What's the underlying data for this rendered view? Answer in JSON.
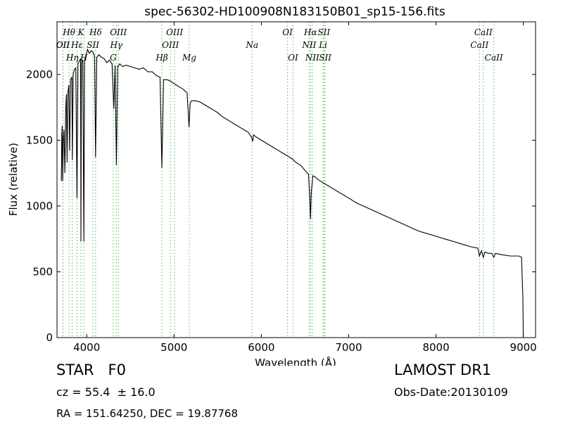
{
  "chart_data": {
    "type": "line",
    "title": "spec-56302-HD100908N183150B01_sp15-156.fits",
    "xlabel": "Wavelength (Å)",
    "ylabel": "Flux (relative)",
    "xlim": [
      3660,
      9140
    ],
    "ylim": [
      0,
      2400
    ],
    "xticks": [
      4000,
      5000,
      6000,
      7000,
      8000,
      9000
    ],
    "yticks": [
      0,
      500,
      1000,
      1500,
      2000
    ],
    "grid": false,
    "line_color": "#000000",
    "marker_color": "#55b855",
    "series": [
      {
        "values": [
          [
            3710,
            1190
          ],
          [
            3715,
            1540
          ],
          [
            3720,
            1610
          ],
          [
            3725,
            1190
          ],
          [
            3732,
            1500
          ],
          [
            3740,
            1580
          ],
          [
            3750,
            1250
          ],
          [
            3760,
            1740
          ],
          [
            3768,
            1850
          ],
          [
            3775,
            1330
          ],
          [
            3785,
            1860
          ],
          [
            3795,
            1920
          ],
          [
            3805,
            1420
          ],
          [
            3815,
            1960
          ],
          [
            3830,
            1980
          ],
          [
            3836,
            1350
          ],
          [
            3845,
            2000
          ],
          [
            3860,
            2040
          ],
          [
            3875,
            2050
          ],
          [
            3889,
            1060
          ],
          [
            3900,
            2080
          ],
          [
            3915,
            2100
          ],
          [
            3930,
            2120
          ],
          [
            3934,
            730
          ],
          [
            3940,
            2090
          ],
          [
            3955,
            2110
          ],
          [
            3968,
            730
          ],
          [
            3975,
            2100
          ],
          [
            3990,
            2140
          ],
          [
            4010,
            2190
          ],
          [
            4030,
            2160
          ],
          [
            4050,
            2180
          ],
          [
            4070,
            2170
          ],
          [
            4090,
            2140
          ],
          [
            4102,
            1370
          ],
          [
            4115,
            2130
          ],
          [
            4140,
            2150
          ],
          [
            4170,
            2130
          ],
          [
            4200,
            2120
          ],
          [
            4230,
            2090
          ],
          [
            4260,
            2110
          ],
          [
            4290,
            2080
          ],
          [
            4310,
            1740
          ],
          [
            4325,
            2070
          ],
          [
            4340,
            1310
          ],
          [
            4355,
            2060
          ],
          [
            4380,
            2080
          ],
          [
            4410,
            2060
          ],
          [
            4450,
            2070
          ],
          [
            4500,
            2060
          ],
          [
            4550,
            2050
          ],
          [
            4600,
            2040
          ],
          [
            4650,
            2050
          ],
          [
            4700,
            2020
          ],
          [
            4750,
            2020
          ],
          [
            4800,
            1990
          ],
          [
            4840,
            1980
          ],
          [
            4861,
            1290
          ],
          [
            4880,
            1960
          ],
          [
            4920,
            1960
          ],
          [
            4960,
            1950
          ],
          [
            5000,
            1930
          ],
          [
            5050,
            1910
          ],
          [
            5100,
            1890
          ],
          [
            5150,
            1860
          ],
          [
            5172,
            1600
          ],
          [
            5185,
            1780
          ],
          [
            5200,
            1800
          ],
          [
            5250,
            1800
          ],
          [
            5300,
            1790
          ],
          [
            5350,
            1770
          ],
          [
            5400,
            1750
          ],
          [
            5450,
            1730
          ],
          [
            5500,
            1710
          ],
          [
            5550,
            1680
          ],
          [
            5600,
            1660
          ],
          [
            5650,
            1640
          ],
          [
            5700,
            1620
          ],
          [
            5750,
            1600
          ],
          [
            5800,
            1580
          ],
          [
            5850,
            1560
          ],
          [
            5890,
            1520
          ],
          [
            5900,
            1490
          ],
          [
            5910,
            1540
          ],
          [
            5950,
            1520
          ],
          [
            6000,
            1500
          ],
          [
            6050,
            1480
          ],
          [
            6100,
            1460
          ],
          [
            6150,
            1440
          ],
          [
            6200,
            1420
          ],
          [
            6250,
            1400
          ],
          [
            6300,
            1380
          ],
          [
            6350,
            1360
          ],
          [
            6400,
            1330
          ],
          [
            6450,
            1310
          ],
          [
            6500,
            1270
          ],
          [
            6540,
            1240
          ],
          [
            6555,
            1060
          ],
          [
            6563,
            900
          ],
          [
            6572,
            1100
          ],
          [
            6590,
            1230
          ],
          [
            6620,
            1220
          ],
          [
            6650,
            1200
          ],
          [
            6700,
            1180
          ],
          [
            6750,
            1160
          ],
          [
            6800,
            1140
          ],
          [
            6850,
            1120
          ],
          [
            6900,
            1100
          ],
          [
            6950,
            1080
          ],
          [
            7000,
            1060
          ],
          [
            7100,
            1020
          ],
          [
            7200,
            990
          ],
          [
            7300,
            960
          ],
          [
            7400,
            930
          ],
          [
            7500,
            900
          ],
          [
            7600,
            870
          ],
          [
            7700,
            840
          ],
          [
            7800,
            810
          ],
          [
            7900,
            790
          ],
          [
            8000,
            770
          ],
          [
            8100,
            750
          ],
          [
            8200,
            730
          ],
          [
            8300,
            710
          ],
          [
            8400,
            690
          ],
          [
            8480,
            680
          ],
          [
            8498,
            620
          ],
          [
            8520,
            660
          ],
          [
            8542,
            610
          ],
          [
            8560,
            650
          ],
          [
            8600,
            640
          ],
          [
            8640,
            640
          ],
          [
            8662,
            610
          ],
          [
            8680,
            640
          ],
          [
            8750,
            630
          ],
          [
            8850,
            620
          ],
          [
            8950,
            620
          ],
          [
            8980,
            610
          ],
          [
            8995,
            300
          ],
          [
            9000,
            0
          ]
        ]
      }
    ],
    "lines": [
      {
        "label": "OII",
        "x": 3727,
        "row": 2
      },
      {
        "label": "OII",
        "x": 3729,
        "row": 3
      },
      {
        "label": "Hθ",
        "x": 3798,
        "row": 1
      },
      {
        "label": "Hη",
        "x": 3835,
        "row": 4
      },
      {
        "label": "Hε",
        "x": 3889,
        "row": 3
      },
      {
        "label": "K",
        "x": 3934,
        "row": 1
      },
      {
        "label": "H",
        "x": 3968,
        "row": 4
      },
      {
        "label": "SII",
        "x": 4072,
        "row": 3
      },
      {
        "label": "Hδ",
        "x": 4102,
        "row": 1
      },
      {
        "label": "G",
        "x": 4304,
        "row": 4
      },
      {
        "label": "Hγ",
        "x": 4340,
        "row": 2
      },
      {
        "label": "OIII",
        "x": 4363,
        "row": 1
      },
      {
        "label": "Hβ",
        "x": 4861,
        "row": 4
      },
      {
        "label": "OIII",
        "x": 4959,
        "row": 3
      },
      {
        "label": "OIII",
        "x": 5007,
        "row": 1
      },
      {
        "label": "Mg",
        "x": 5175,
        "row": 4
      },
      {
        "label": "Na",
        "x": 5894,
        "row": 3
      },
      {
        "label": "OI",
        "x": 6300,
        "row": 1
      },
      {
        "label": "OI",
        "x": 6363,
        "row": 4
      },
      {
        "label": "NII",
        "x": 6548,
        "row": 3
      },
      {
        "label": "Hα",
        "x": 6563,
        "row": 1
      },
      {
        "label": "NII",
        "x": 6583,
        "row": 4
      },
      {
        "label": "Li",
        "x": 6707,
        "row": 3
      },
      {
        "label": "SII",
        "x": 6716,
        "row": 1
      },
      {
        "label": "SII",
        "x": 6731,
        "row": 4
      },
      {
        "label": "CaII",
        "x": 8498,
        "row": 3
      },
      {
        "label": "CaII",
        "x": 8542,
        "row": 1
      },
      {
        "label": "CaII",
        "x": 8662,
        "row": 4
      }
    ]
  },
  "info": {
    "class_line": "STAR   F0",
    "cz_line": "cz = 55.4  ± 16.0",
    "radec_line": "RA = 151.64250, DEC = 19.87768",
    "survey": "LAMOST DR1",
    "obs_date": "Obs-Date:20130109"
  }
}
